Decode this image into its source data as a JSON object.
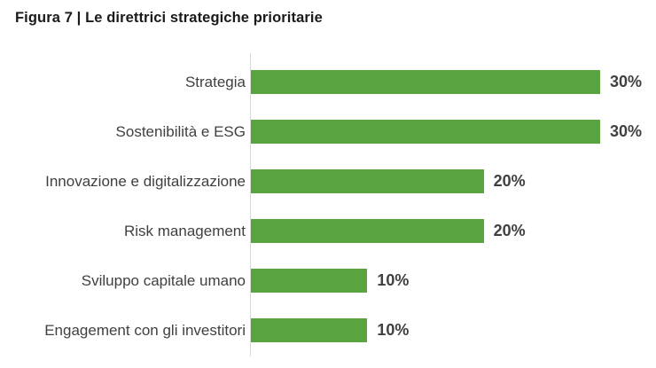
{
  "header": {
    "title": "Figura 7 | Le direttrici strategiche prioritarie"
  },
  "chart_data": {
    "type": "bar",
    "orientation": "horizontal",
    "title": "Figura 7 | Le direttrici strategiche prioritarie",
    "categories": [
      "Strategia",
      "Sostenibilità e ESG",
      "Innovazione e digitalizzazione",
      "Risk management",
      "Sviluppo capitale umano",
      "Engagement con gli investitori"
    ],
    "values": [
      30,
      30,
      20,
      20,
      10,
      10
    ],
    "value_labels": [
      "30%",
      "30%",
      "20%",
      "20%",
      "10%",
      "10%"
    ],
    "xlabel": "",
    "ylabel": "",
    "xlim": [
      0,
      34.8
    ],
    "grid": false,
    "legend": false,
    "data_labels": "outside-end",
    "colors": {
      "bar": "#5aa341",
      "axis_line": "#d9d9d9",
      "category_label": "#404040",
      "value_label": "#404040",
      "title": "#1a1a1a",
      "background": "#ffffff"
    }
  }
}
